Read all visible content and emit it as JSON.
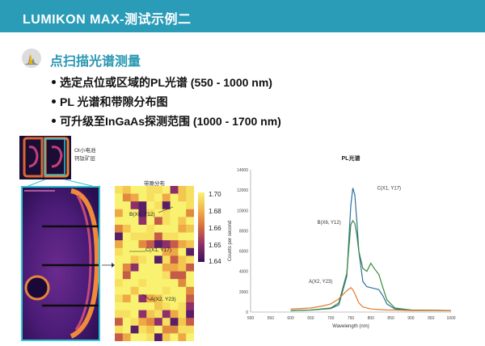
{
  "header": {
    "title": "LUMIKON MAX-测试示例二",
    "bg_color": "#2b9cb8"
  },
  "section": {
    "icon": "spectrum-icon",
    "title": "点扫描光谱测量",
    "accent": "#2a97b2"
  },
  "bullets": [
    "选定点位或区域的PL光谱 (550 - 1000 nm)",
    "PL 光谱和带隙分布图",
    "可升级至InGaAs探测范围 (1000 - 1700 nm)"
  ],
  "thumbnail": {
    "label_line1": "OI小电池",
    "label_line2": "钙钛矿层"
  },
  "bandgap_map": {
    "title": "带隙分布",
    "colorbar_ticks": [
      "1.70",
      "1.68",
      "1.66",
      "1.65",
      "1.64"
    ],
    "point_labels": {
      "b": "B(X6, Y12)",
      "c": "C(X1, Y17)",
      "a": "A(X2, Y23)"
    }
  },
  "chart_data": {
    "type": "line",
    "title": "PL光谱",
    "xlabel": "Wavelength (nm)",
    "ylabel": "Counts per second",
    "xlim": [
      500,
      1000
    ],
    "ylim": [
      0,
      14000
    ],
    "x_ticks": [
      500,
      550,
      600,
      650,
      700,
      750,
      800,
      850,
      900,
      950,
      1000
    ],
    "y_ticks": [
      0,
      2000,
      4000,
      6000,
      8000,
      10000,
      12000,
      14000
    ],
    "grid": false,
    "series": [
      {
        "name": "C(X1, Y17)",
        "color": "#2e6f9e",
        "x": [
          600,
          650,
          700,
          720,
          740,
          750,
          755,
          760,
          765,
          770,
          780,
          790,
          800,
          810,
          820,
          830,
          840,
          860,
          900,
          1000
        ],
        "y": [
          150,
          200,
          350,
          700,
          3500,
          10500,
          12200,
          11500,
          9000,
          6000,
          3000,
          2500,
          2400,
          2300,
          2200,
          1600,
          800,
          300,
          200,
          150
        ]
      },
      {
        "name": "B(X6, Y12)",
        "color": "#3a8a3a",
        "x": [
          600,
          650,
          700,
          720,
          740,
          750,
          755,
          760,
          765,
          770,
          780,
          790,
          800,
          810,
          820,
          830,
          840,
          860,
          900,
          1000
        ],
        "y": [
          150,
          200,
          400,
          900,
          3800,
          8600,
          9000,
          8700,
          7600,
          6000,
          4300,
          4000,
          4800,
          4200,
          3700,
          2400,
          1200,
          400,
          200,
          150
        ]
      },
      {
        "name": "A(X2, Y23)",
        "color": "#e07a2e",
        "x": [
          600,
          650,
          680,
          700,
          720,
          740,
          750,
          755,
          760,
          770,
          780,
          800,
          820,
          840,
          860,
          900,
          1000
        ],
        "y": [
          300,
          400,
          600,
          800,
          1300,
          2100,
          2400,
          2200,
          1800,
          900,
          500,
          300,
          250,
          200,
          200,
          150,
          150
        ]
      }
    ]
  }
}
